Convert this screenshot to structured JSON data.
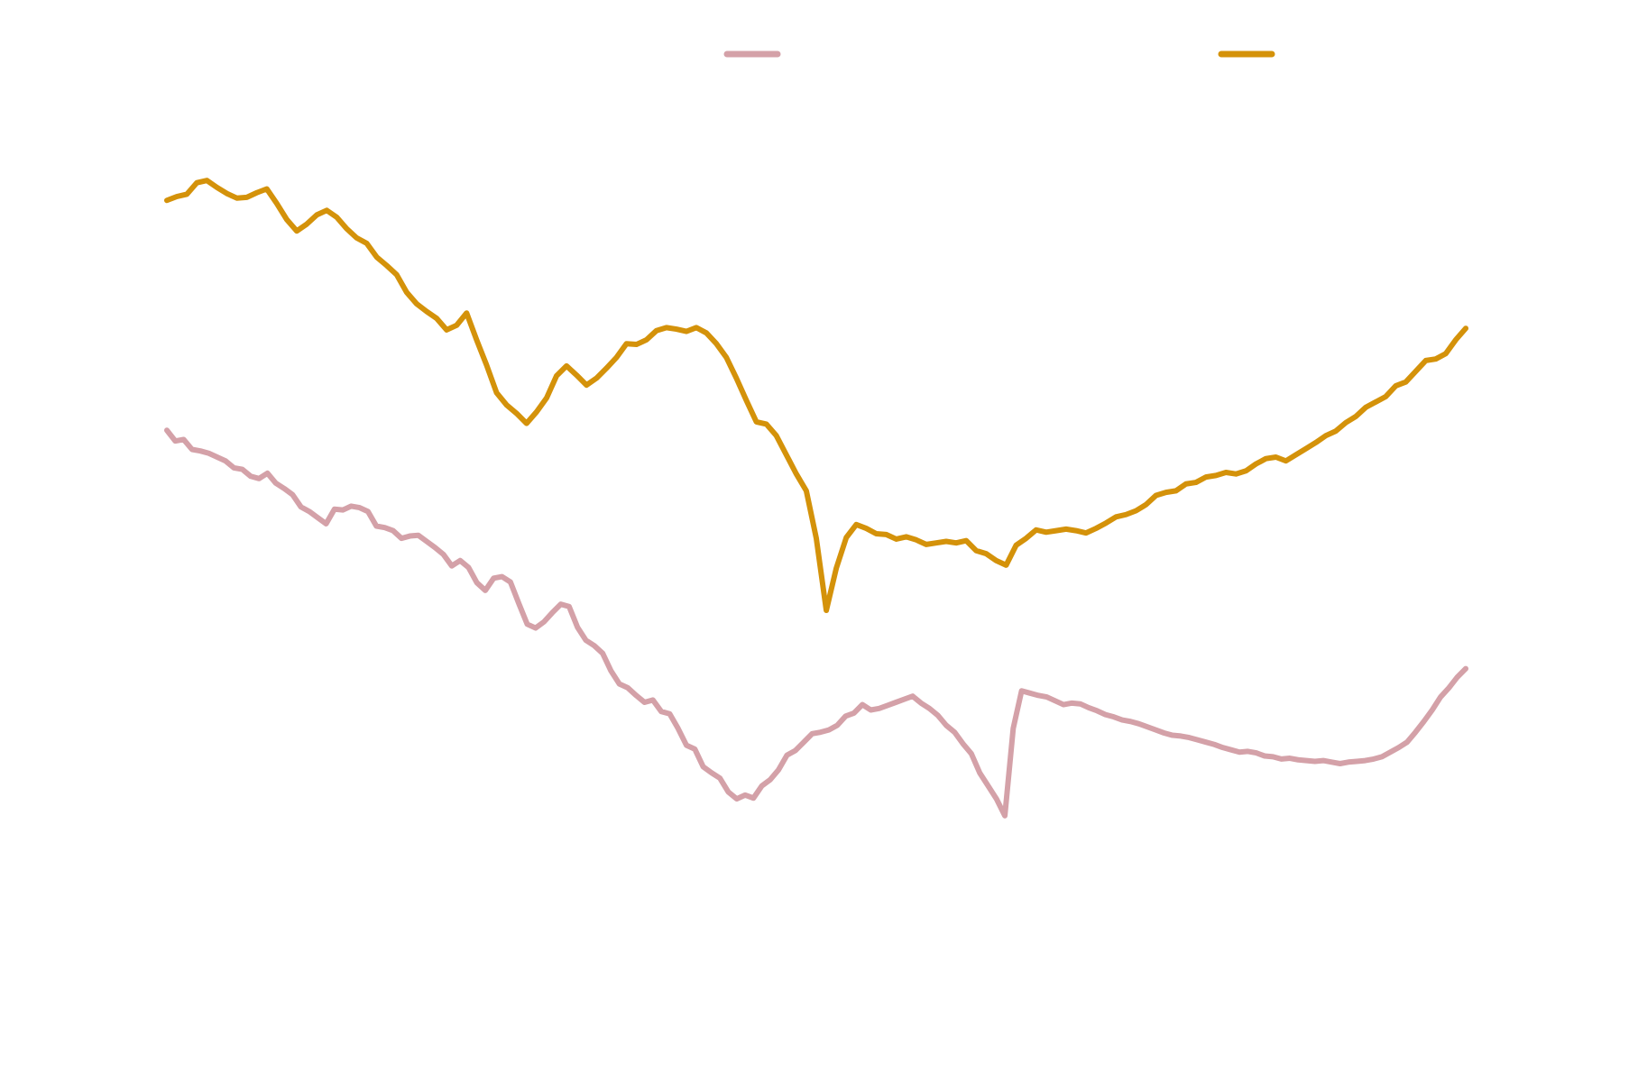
{
  "chart_data": {
    "type": "line",
    "title": "",
    "xlabel": "",
    "ylabel": "",
    "grid": false,
    "legend_placement": "top",
    "ylim": [
      0,
      100
    ],
    "series": [
      {
        "color": "#d4a1a8",
        "values": [
          61.5,
          60.1,
          60.3,
          59.0,
          58.8,
          58.5,
          58.0,
          57.5,
          56.6,
          56.4,
          55.5,
          55.2,
          55.9,
          54.6,
          53.9,
          53.1,
          51.5,
          50.9,
          50.1,
          49.3,
          51.2,
          51.1,
          51.6,
          51.4,
          50.9,
          49.0,
          48.8,
          48.4,
          47.4,
          47.7,
          47.8,
          47.0,
          46.2,
          45.3,
          43.8,
          44.5,
          43.6,
          41.6,
          40.6,
          42.2,
          42.4,
          41.7,
          38.9,
          36.2,
          35.7,
          36.5,
          37.7,
          38.8,
          38.5,
          35.8,
          34.1,
          33.4,
          32.4,
          30.1,
          28.4,
          27.9,
          26.9,
          26.0,
          26.3,
          24.8,
          24.5,
          22.6,
          20.4,
          19.9,
          17.6,
          16.8,
          16.1,
          14.3,
          13.4,
          13.9,
          13.5,
          15.1,
          15.9,
          17.2,
          19.1,
          19.7,
          20.8,
          21.9,
          22.1,
          22.4,
          23.0,
          24.2,
          24.6,
          25.7,
          25.0,
          25.2,
          25.6,
          26.0,
          26.4,
          26.8,
          25.9,
          25.2,
          24.3,
          23.0,
          22.1,
          20.6,
          19.3,
          16.8,
          15.1,
          13.4,
          11.2,
          22.6,
          27.5,
          27.2,
          26.9,
          26.7,
          26.2,
          25.7,
          25.9,
          25.8,
          25.3,
          24.9,
          24.4,
          24.1,
          23.7,
          23.5,
          23.2,
          22.8,
          22.4,
          22.0,
          21.7,
          21.6,
          21.4,
          21.1,
          20.8,
          20.5,
          20.1,
          19.8,
          19.5,
          19.6,
          19.4,
          19.0,
          18.9,
          18.6,
          18.7,
          18.5,
          18.4,
          18.3,
          18.4,
          18.2,
          18.0,
          18.2,
          18.3,
          18.4,
          18.6,
          18.9,
          19.5,
          20.1,
          20.8,
          22.1,
          23.5,
          25.0,
          26.7,
          27.9,
          29.3,
          30.4
        ]
      },
      {
        "color": "#d4920a",
        "values": [
          91.5,
          92.0,
          92.3,
          93.8,
          94.1,
          93.2,
          92.4,
          91.8,
          91.9,
          92.5,
          93.0,
          91.1,
          89.0,
          87.5,
          88.4,
          89.6,
          90.2,
          89.3,
          87.8,
          86.6,
          85.9,
          84.1,
          83.0,
          81.8,
          79.5,
          78.0,
          77.0,
          76.1,
          74.6,
          75.2,
          76.8,
          73.3,
          70.0,
          66.4,
          64.8,
          63.7,
          62.4,
          63.9,
          65.7,
          68.6,
          69.9,
          68.7,
          67.4,
          68.3,
          69.6,
          71.0,
          72.8,
          72.7,
          73.3,
          74.5,
          74.9,
          74.7,
          74.4,
          74.9,
          74.2,
          72.8,
          71.0,
          68.3,
          65.4,
          62.6,
          62.3,
          60.8,
          58.3,
          55.8,
          53.6,
          47.4,
          38.0,
          43.5,
          47.5,
          49.2,
          48.7,
          48.0,
          47.9,
          47.3,
          47.6,
          47.2,
          46.6,
          46.8,
          47.0,
          46.8,
          47.1,
          45.8,
          45.4,
          44.5,
          43.9,
          46.5,
          47.4,
          48.5,
          48.2,
          48.4,
          48.6,
          48.4,
          48.1,
          48.7,
          49.4,
          50.2,
          50.5,
          51.0,
          51.8,
          53.0,
          53.4,
          53.6,
          54.5,
          54.7,
          55.4,
          55.6,
          56.0,
          55.8,
          56.2,
          57.1,
          57.8,
          58.0,
          57.5,
          58.3,
          59.1,
          59.9,
          60.8,
          61.4,
          62.5,
          63.3,
          64.5,
          65.2,
          65.9,
          67.3,
          67.8,
          69.2,
          70.6,
          70.8,
          71.5,
          73.3,
          74.8
        ]
      }
    ]
  }
}
